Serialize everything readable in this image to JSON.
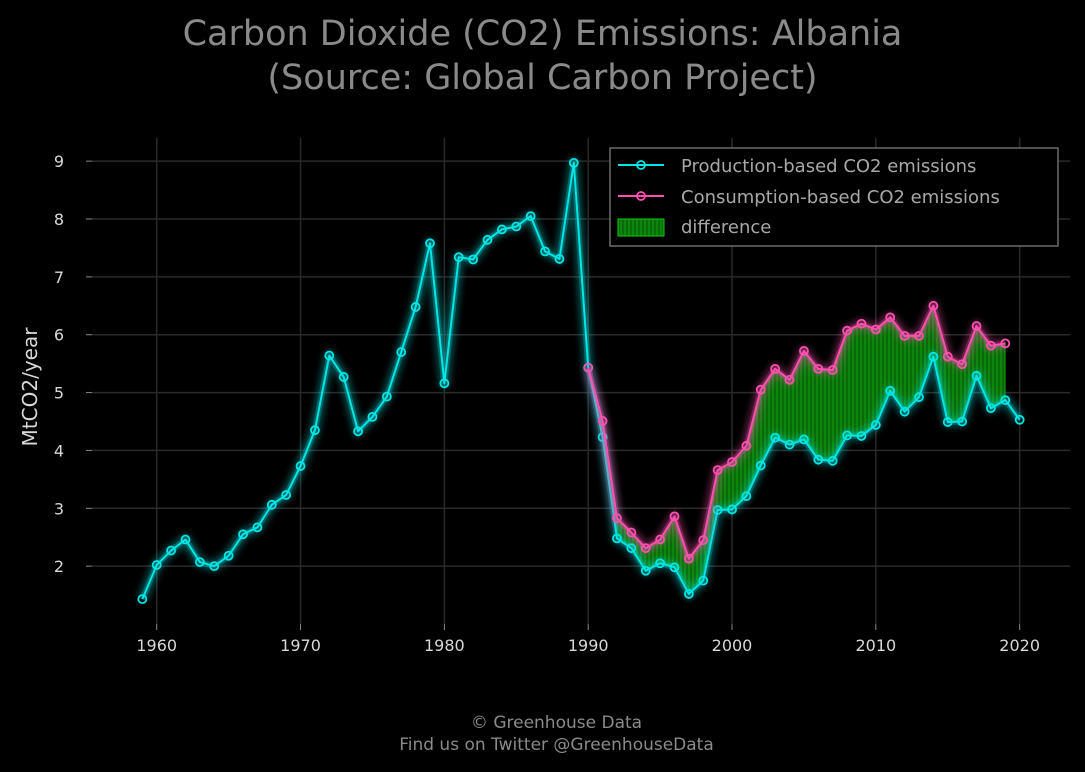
{
  "chart_data": {
    "type": "line",
    "title": "Carbon Dioxide (CO2) Emissions: Albania",
    "subtitle": "(Source: Global Carbon Project)",
    "ylabel": "MtCO2/year",
    "xlabel": "",
    "xlim": [
      1955.5,
      2023.5
    ],
    "ylim": [
      1,
      9.4
    ],
    "x_ticks": [
      1960,
      1970,
      1980,
      1990,
      2000,
      2010,
      2020
    ],
    "y_ticks": [
      2,
      3,
      4,
      5,
      6,
      7,
      8,
      9
    ],
    "grid": true,
    "legend_position": "top-right",
    "legend": [
      "Production-based CO2 emissions",
      "Consumption-based CO2 emissions",
      "difference"
    ],
    "series": [
      {
        "name": "Production-based CO2 emissions",
        "color": "#00e5e5",
        "x": [
          1959,
          1960,
          1961,
          1962,
          1963,
          1964,
          1965,
          1966,
          1967,
          1968,
          1969,
          1970,
          1971,
          1972,
          1973,
          1974,
          1975,
          1976,
          1977,
          1978,
          1979,
          1980,
          1981,
          1982,
          1983,
          1984,
          1985,
          1986,
          1987,
          1988,
          1989,
          1990,
          1991,
          1992,
          1993,
          1994,
          1995,
          1996,
          1997,
          1998,
          1999,
          2000,
          2001,
          2002,
          2003,
          2004,
          2005,
          2006,
          2007,
          2008,
          2009,
          2010,
          2011,
          2012,
          2013,
          2014,
          2015,
          2016,
          2017,
          2018,
          2019,
          2020
        ],
        "y": [
          1.43,
          2.02,
          2.27,
          2.46,
          2.07,
          2.0,
          2.18,
          2.55,
          2.67,
          3.06,
          3.23,
          3.73,
          4.35,
          5.64,
          5.27,
          4.33,
          4.58,
          4.93,
          5.7,
          6.48,
          7.58,
          5.16,
          7.34,
          7.3,
          7.64,
          7.82,
          7.87,
          8.05,
          7.44,
          7.31,
          8.97,
          5.43,
          4.23,
          2.48,
          2.31,
          1.92,
          2.05,
          1.98,
          1.52,
          1.75,
          2.97,
          2.98,
          3.21,
          3.74,
          4.22,
          4.1,
          4.19,
          3.84,
          3.82,
          4.26,
          4.25,
          4.44,
          5.03,
          4.67,
          4.92,
          5.62,
          4.49,
          4.5,
          5.29,
          4.73,
          4.87,
          4.53
        ]
      },
      {
        "name": "Consumption-based CO2 emissions",
        "color": "#ff4fb1",
        "x": [
          1990,
          1991,
          1992,
          1993,
          1994,
          1995,
          1996,
          1997,
          1998,
          1999,
          2000,
          2001,
          2002,
          2003,
          2004,
          2005,
          2006,
          2007,
          2008,
          2009,
          2010,
          2011,
          2012,
          2013,
          2014,
          2015,
          2016,
          2017,
          2018,
          2019
        ],
        "y": [
          5.43,
          4.51,
          2.83,
          2.58,
          2.31,
          2.46,
          2.86,
          2.13,
          2.45,
          3.66,
          3.8,
          4.08,
          5.05,
          5.41,
          5.22,
          5.72,
          5.41,
          5.39,
          6.07,
          6.19,
          6.09,
          6.3,
          5.98,
          5.98,
          6.5,
          5.62,
          5.49,
          6.15,
          5.81,
          5.85
        ]
      }
    ],
    "fill_color": "#0bd10b"
  },
  "footer": {
    "line1": "© Greenhouse Data",
    "line2": "Find us on Twitter @GreenhouseData"
  }
}
